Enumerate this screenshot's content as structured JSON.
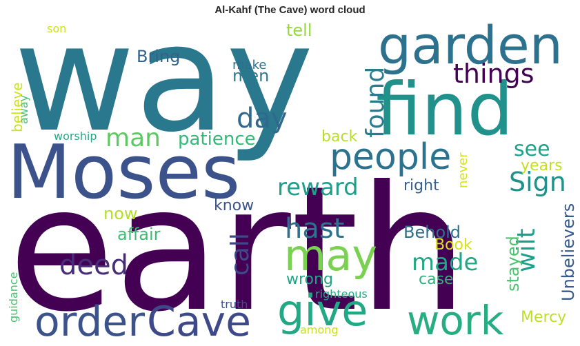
{
  "chart_data": {
    "type": "word_cloud",
    "title": "Al-Kahf (The Cave) word cloud",
    "words": [
      {
        "text": "earth",
        "weight": 100,
        "color": "#440154"
      },
      {
        "text": "way",
        "weight": 95,
        "color": "#2a788e"
      },
      {
        "text": "Moses",
        "weight": 62,
        "color": "#3b528b"
      },
      {
        "text": "find",
        "weight": 60,
        "color": "#21918c"
      },
      {
        "text": "garden",
        "weight": 44,
        "color": "#2c728e"
      },
      {
        "text": "people",
        "weight": 33,
        "color": "#2c728e"
      },
      {
        "text": "Cave",
        "weight": 33,
        "color": "#3e4989"
      },
      {
        "text": "order",
        "weight": 33,
        "color": "#3b528b"
      },
      {
        "text": "work",
        "weight": 33,
        "color": "#27ad81"
      },
      {
        "text": "give",
        "weight": 33,
        "color": "#22a884"
      },
      {
        "text": "may",
        "weight": 33,
        "color": "#7ad151"
      },
      {
        "text": "things",
        "weight": 24,
        "color": "#440154"
      },
      {
        "text": "man",
        "weight": 24,
        "color": "#5ec962"
      },
      {
        "text": "day",
        "weight": 24,
        "color": "#31688e"
      },
      {
        "text": "deed",
        "weight": 24,
        "color": "#472d7b"
      },
      {
        "text": "hast",
        "weight": 24,
        "color": "#2c728e"
      },
      {
        "text": "Sign",
        "weight": 24,
        "color": "#21918c"
      },
      {
        "text": "found",
        "weight": 24,
        "color": "#287c8e"
      },
      {
        "text": "reward",
        "weight": 22,
        "color": "#1f9e89"
      },
      {
        "text": "call",
        "weight": 22,
        "color": "#3e4989"
      },
      {
        "text": "made",
        "weight": 22,
        "color": "#22a884"
      },
      {
        "text": "wilt",
        "weight": 22,
        "color": "#1f9e89"
      },
      {
        "text": "see",
        "weight": 20,
        "color": "#1fa188"
      },
      {
        "text": "patience",
        "weight": 16,
        "color": "#35b779"
      },
      {
        "text": "Bring",
        "weight": 16,
        "color": "#33638d"
      },
      {
        "text": "men",
        "weight": 16,
        "color": "#2a788e"
      },
      {
        "text": "tell",
        "weight": 16,
        "color": "#95d840"
      },
      {
        "text": "back",
        "weight": 16,
        "color": "#b8de29"
      },
      {
        "text": "years",
        "weight": 16,
        "color": "#c2df23"
      },
      {
        "text": "right",
        "weight": 16,
        "color": "#355f8d"
      },
      {
        "text": "know",
        "weight": 16,
        "color": "#3b528b"
      },
      {
        "text": "now",
        "weight": 16,
        "color": "#b5de2b"
      },
      {
        "text": "affair",
        "weight": 16,
        "color": "#3fbc73"
      },
      {
        "text": "Behold",
        "weight": 16,
        "color": "#2d708e"
      },
      {
        "text": "Book",
        "weight": 16,
        "color": "#d8e219"
      },
      {
        "text": "wrong",
        "weight": 16,
        "color": "#20a486"
      },
      {
        "text": "case",
        "weight": 16,
        "color": "#2db27d"
      },
      {
        "text": "stayed",
        "weight": 16,
        "color": "#4ac16d"
      },
      {
        "text": "Unbelievers",
        "weight": 16,
        "color": "#375b8d"
      },
      {
        "text": "Mercy",
        "weight": 16,
        "color": "#bddf26"
      },
      {
        "text": "believe",
        "weight": 13,
        "color": "#cde11d"
      },
      {
        "text": "never",
        "weight": 13,
        "color": "#d5e21a"
      },
      {
        "text": "make",
        "weight": 11,
        "color": "#2e6f8e"
      },
      {
        "text": "worship",
        "weight": 11,
        "color": "#22a884"
      },
      {
        "text": "away",
        "weight": 11,
        "color": "#4ac16d"
      },
      {
        "text": "son",
        "weight": 11,
        "color": "#d0e11c"
      },
      {
        "text": "truth",
        "weight": 11,
        "color": "#3b528b"
      },
      {
        "text": "righteous",
        "weight": 11,
        "color": "#25ab82"
      },
      {
        "text": "among",
        "weight": 11,
        "color": "#c8e020"
      },
      {
        "text": "guidance",
        "weight": 11,
        "color": "#44bf70"
      }
    ]
  }
}
